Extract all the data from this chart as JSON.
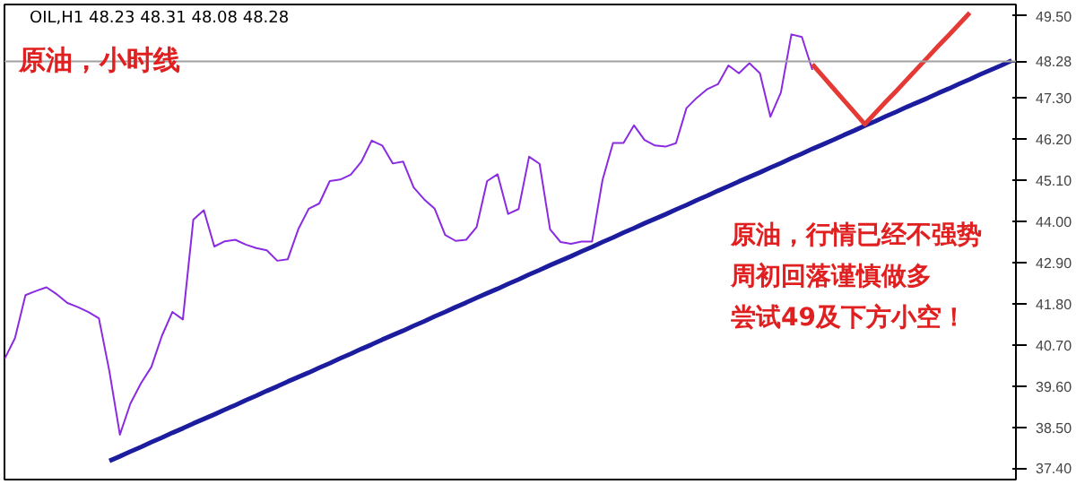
{
  "chart_data": {
    "type": "line",
    "title": "原油，小时线",
    "annotations": [
      "OIL,H1 48.23 48.31 48.08 48.28",
      "原油，行情已经不强势",
      "周初回落谨慎做多",
      "尝试49及下方小空！"
    ],
    "categories": [
      null,
      null,
      null,
      null,
      null,
      null,
      null,
      null,
      null,
      null,
      null,
      null,
      null,
      null,
      null,
      null,
      null,
      null,
      null,
      null,
      null,
      null,
      null,
      null,
      null,
      null,
      null,
      null,
      null,
      null,
      null,
      null,
      null,
      null,
      null,
      null,
      null,
      null,
      null,
      null,
      null,
      null,
      null,
      null,
      null,
      null,
      null,
      null,
      null,
      null,
      null,
      null,
      null,
      null,
      null,
      null,
      null,
      null,
      null,
      null,
      null,
      null,
      null,
      null,
      null,
      null,
      null,
      null,
      null,
      null,
      null,
      null,
      null,
      null,
      null,
      null,
      null,
      null,
      null,
      null,
      null,
      null,
      null,
      null,
      null,
      null,
      null,
      null,
      null,
      null,
      null,
      null,
      null,
      null,
      null,
      null,
      null
    ],
    "series": [
      {
        "color": "#8a2be2",
        "values": [
          40.32,
          40.88,
          42.03,
          42.14,
          42.24,
          42.05,
          41.82,
          41.71,
          41.58,
          41.41,
          39.99,
          38.3,
          39.13,
          39.67,
          40.11,
          40.94,
          41.58,
          41.38,
          44.05,
          44.3,
          43.33,
          43.47,
          43.51,
          43.38,
          43.29,
          43.23,
          42.95,
          42.99,
          43.79,
          44.34,
          44.48,
          45.08,
          45.12,
          45.25,
          45.59,
          46.16,
          46.03,
          45.55,
          45.6,
          44.91,
          44.59,
          44.34,
          43.64,
          43.48,
          43.51,
          43.85,
          45.08,
          45.26,
          44.2,
          44.33,
          45.73,
          45.54,
          43.79,
          43.45,
          43.4,
          43.46,
          43.46,
          45.11,
          46.1,
          46.1,
          46.57,
          46.18,
          46.03,
          46.0,
          46.09,
          47.03,
          47.31,
          47.54,
          47.67,
          48.17,
          47.96,
          48.23,
          47.96,
          46.8,
          47.45,
          49.0,
          48.93,
          48.05,
          null,
          null,
          null,
          null,
          null,
          null,
          null,
          null,
          null,
          null,
          null,
          null,
          null,
          null,
          null,
          null,
          null,
          null,
          null
        ]
      },
      {
        "color": "#1c1c9e",
        "values": [
          null,
          null,
          null,
          null,
          null,
          null,
          null,
          null,
          null,
          null,
          37.6,
          37.72,
          37.85,
          37.97,
          38.1,
          38.22,
          38.35,
          38.47,
          38.6,
          38.72,
          38.84,
          38.97,
          39.09,
          39.22,
          39.34,
          39.47,
          39.59,
          39.72,
          39.84,
          39.96,
          40.09,
          40.21,
          40.34,
          40.46,
          40.59,
          40.71,
          40.84,
          40.96,
          41.08,
          41.21,
          41.33,
          41.46,
          41.58,
          41.71,
          41.83,
          41.96,
          42.08,
          42.2,
          42.33,
          42.45,
          42.58,
          42.7,
          42.83,
          42.95,
          43.07,
          43.2,
          43.32,
          43.45,
          43.57,
          43.7,
          43.82,
          43.95,
          44.07,
          44.19,
          44.32,
          44.44,
          44.57,
          44.69,
          44.82,
          44.94,
          45.07,
          45.19,
          45.31,
          45.44,
          45.56,
          45.69,
          45.81,
          45.94,
          46.06,
          46.18,
          46.31,
          46.43,
          46.56,
          46.68,
          46.81,
          46.93,
          47.06,
          47.18,
          47.3,
          47.43,
          47.55,
          47.68,
          47.8,
          47.93,
          48.05,
          48.17,
          48.3
        ]
      },
      {
        "color": "#e53935",
        "values": [
          null,
          null,
          null,
          null,
          null,
          null,
          null,
          null,
          null,
          null,
          null,
          null,
          null,
          null,
          null,
          null,
          null,
          null,
          null,
          null,
          null,
          null,
          null,
          null,
          null,
          null,
          null,
          null,
          null,
          null,
          null,
          null,
          null,
          null,
          null,
          null,
          null,
          null,
          null,
          null,
          null,
          null,
          null,
          null,
          null,
          null,
          null,
          null,
          null,
          null,
          null,
          null,
          null,
          null,
          null,
          null,
          null,
          null,
          null,
          null,
          null,
          null,
          null,
          null,
          null,
          null,
          null,
          null,
          null,
          null,
          null,
          null,
          null,
          null,
          null,
          null,
          null,
          48.2,
          47.88,
          47.56,
          47.24,
          46.92,
          46.6,
          46.9,
          47.2,
          47.49,
          47.79,
          48.09,
          48.39,
          48.69,
          48.98,
          49.28,
          49.58,
          null,
          null,
          null,
          null
        ]
      }
    ],
    "ylim": [
      37.1,
      49.8
    ],
    "yticks": [
      {
        "value": 37.4,
        "label": "37.40"
      },
      {
        "value": 38.5,
        "label": "38.50"
      },
      {
        "value": 39.6,
        "label": "39.60"
      },
      {
        "value": 40.7,
        "label": "40.70"
      },
      {
        "value": 41.8,
        "label": "41.80"
      },
      {
        "value": 42.9,
        "label": "42.90"
      },
      {
        "value": 44.0,
        "label": "44.00"
      },
      {
        "value": 45.1,
        "label": "45.10"
      },
      {
        "value": 46.2,
        "label": "46.20"
      },
      {
        "value": 47.3,
        "label": "47.30"
      },
      {
        "value": 48.28,
        "label": "48.28"
      },
      {
        "value": 49.5,
        "label": "49.50"
      }
    ],
    "ref_lines": [
      {
        "axis": "y",
        "value": 48.28,
        "color": "#a0a0a0"
      }
    ],
    "tick_labels": "y",
    "line_style": "solid"
  }
}
